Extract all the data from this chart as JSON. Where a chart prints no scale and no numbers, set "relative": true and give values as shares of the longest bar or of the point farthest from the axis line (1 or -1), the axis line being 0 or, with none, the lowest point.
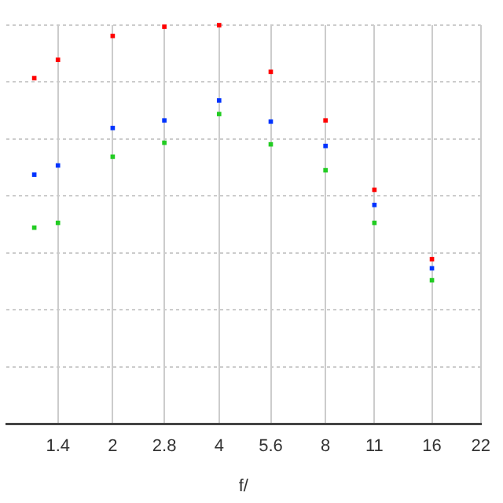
{
  "chart_data": {
    "type": "scatter",
    "xlabel": "f/",
    "relative": true,
    "x": [
      1.2,
      1.4,
      2,
      2.8,
      4,
      5.6,
      8,
      11,
      16
    ],
    "xlim": [
      1,
      22
    ],
    "xticks": [
      1.4,
      2,
      2.8,
      4,
      5.6,
      8,
      11,
      16,
      22
    ],
    "log": "x",
    "grid": true,
    "marker": "square",
    "series": [
      {
        "color": "#ff0000",
        "values": [
          0.867,
          0.913,
          0.973,
          0.996,
          1,
          0.883,
          0.761,
          0.587,
          0.413
        ]
      },
      {
        "color": "#0033ff",
        "values": [
          0.625,
          0.648,
          0.742,
          0.761,
          0.811,
          0.758,
          0.697,
          0.549,
          0.39
        ]
      },
      {
        "color": "#22cc22",
        "values": [
          0.492,
          0.504,
          0.67,
          0.705,
          0.777,
          0.701,
          0.636,
          0.504,
          0.36
        ]
      }
    ]
  }
}
